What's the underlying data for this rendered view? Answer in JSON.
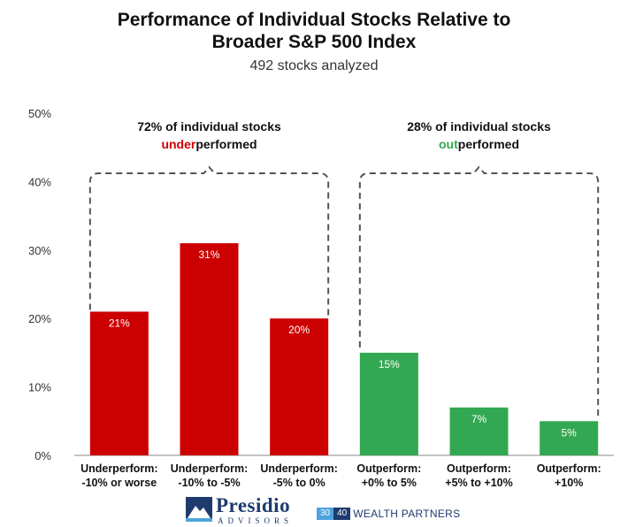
{
  "chart_data": {
    "type": "bar",
    "title_line1": "Performance of Individual Stocks Relative to",
    "title_line2": "Broader S&P 500 Index",
    "subtitle": "492 stocks analyzed",
    "categories": [
      [
        "Underperform:",
        "-10% or worse"
      ],
      [
        "Underperform:",
        "-10% to -5%"
      ],
      [
        "Underperform:",
        "-5% to 0%"
      ],
      [
        "Outperform:",
        "+0% to 5%"
      ],
      [
        "Outperform:",
        "+5% to +10%"
      ],
      [
        "Outperform:",
        "+10%"
      ]
    ],
    "values": [
      21,
      31,
      20,
      15,
      7,
      5
    ],
    "value_labels": [
      "21%",
      "31%",
      "20%",
      "15%",
      "7%",
      "5%"
    ],
    "bar_colors": [
      "#cc0000",
      "#cc0000",
      "#cc0000",
      "#33a852",
      "#33a852",
      "#33a852"
    ],
    "ylim": [
      0,
      50
    ],
    "yticks": [
      "0%",
      "10%",
      "20%",
      "30%",
      "40%",
      "50%"
    ],
    "grid": false,
    "annotations": [
      {
        "line1": "72% of individual stocks",
        "highlight": "under",
        "rest": "performed",
        "color": "#cc0000"
      },
      {
        "line1": "28% of individual stocks",
        "highlight": "out",
        "rest": "performed",
        "color": "#33a852"
      }
    ]
  },
  "logos": {
    "presidio_name": "Presidio",
    "presidio_sub": "ADVISORS",
    "wp_a": "30",
    "wp_b": "40",
    "wp_text": "WEALTH PARTNERS"
  }
}
